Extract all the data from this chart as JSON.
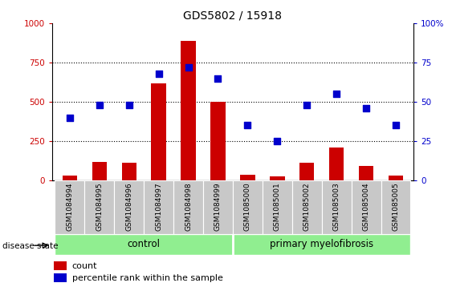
{
  "title": "GDS5802 / 15918",
  "samples": [
    "GSM1084994",
    "GSM1084995",
    "GSM1084996",
    "GSM1084997",
    "GSM1084998",
    "GSM1084999",
    "GSM1085000",
    "GSM1085001",
    "GSM1085002",
    "GSM1085003",
    "GSM1085004",
    "GSM1085005"
  ],
  "counts": [
    30,
    120,
    110,
    620,
    890,
    500,
    35,
    25,
    110,
    210,
    90,
    30
  ],
  "percentiles": [
    40,
    48,
    48,
    68,
    72,
    65,
    35,
    25,
    48,
    55,
    46,
    35
  ],
  "control_label": "control",
  "disease_label": "primary myelofibrosis",
  "disease_state_label": "disease state",
  "legend_count": "count",
  "legend_percentile": "percentile rank within the sample",
  "bar_color": "#cc0000",
  "dot_color": "#0000cc",
  "green_bg": "#90ee90",
  "tick_bg": "#c8c8c8",
  "ylim_left": [
    0,
    1000
  ],
  "ylim_right": [
    0,
    100
  ],
  "yticks_left": [
    0,
    250,
    500,
    750,
    1000
  ],
  "yticks_right": [
    0,
    25,
    50,
    75,
    100
  ],
  "ytick_labels_left": [
    "0",
    "250",
    "500",
    "750",
    "1000"
  ],
  "ytick_labels_right": [
    "0",
    "25",
    "50",
    "75",
    "100%"
  ]
}
